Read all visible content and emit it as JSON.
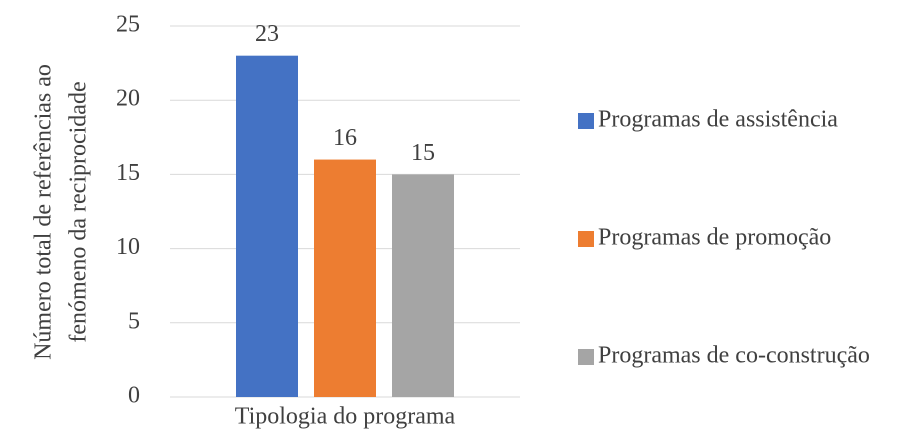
{
  "chart_data": {
    "type": "bar",
    "categories": [
      "Tipologia do programa"
    ],
    "series": [
      {
        "name": "Programas de assistência",
        "color": "#4472c4",
        "values": [
          23
        ]
      },
      {
        "name": "Programas de promoção",
        "color": "#ed7d31",
        "values": [
          16
        ]
      },
      {
        "name": "Programas de co-construção",
        "color": "#a5a5a5",
        "values": [
          15
        ]
      }
    ],
    "ylabel": [
      "Número total de referências ao",
      "fenómeno da reciprocidade"
    ],
    "ylim": [
      0,
      25
    ],
    "yticks": [
      0,
      5,
      10,
      15,
      20,
      25
    ],
    "grid": true,
    "legend": "right"
  }
}
